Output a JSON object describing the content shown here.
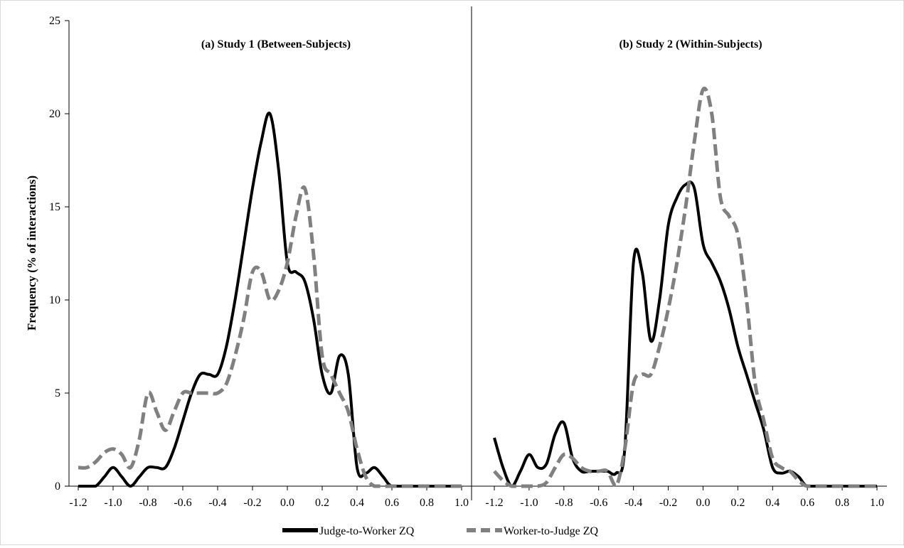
{
  "chart_data": {
    "type": "line",
    "ylabel": "Frequency (% of interactions)",
    "ylim": [
      0,
      25
    ],
    "yticks": [
      "0",
      "5",
      "10",
      "15",
      "20",
      "25"
    ],
    "grid": false,
    "legend_position": "bottom",
    "legend": [
      "Judge-to-Worker ZQ",
      "Worker-to-Judge ZQ"
    ],
    "colors": {
      "judge": "#000000",
      "worker": "#808080"
    },
    "panels": [
      {
        "title": "(a) Study 1 (Between-Subjects)",
        "xlim": [
          -1.2,
          1.0
        ],
        "xticks": [
          "-1.2",
          "-1.0",
          "-0.8",
          "-0.6",
          "-0.4",
          "-0.2",
          "0.0",
          "0.2",
          "0.4",
          "0.6",
          "0.8",
          "1.0"
        ],
        "series": [
          {
            "name": "Judge-to-Worker ZQ",
            "style": "solid",
            "points": [
              [
                -1.2,
                0
              ],
              [
                -1.15,
                0
              ],
              [
                -1.1,
                0
              ],
              [
                -1.05,
                0.5
              ],
              [
                -1.0,
                1.0
              ],
              [
                -0.95,
                0.5
              ],
              [
                -0.9,
                0
              ],
              [
                -0.85,
                0.5
              ],
              [
                -0.8,
                1.0
              ],
              [
                -0.75,
                1.0
              ],
              [
                -0.7,
                1.0
              ],
              [
                -0.65,
                2.0
              ],
              [
                -0.6,
                3.5
              ],
              [
                -0.55,
                5.0
              ],
              [
                -0.5,
                6.0
              ],
              [
                -0.45,
                6.0
              ],
              [
                -0.4,
                6.0
              ],
              [
                -0.35,
                7.5
              ],
              [
                -0.3,
                10.0
              ],
              [
                -0.25,
                13.0
              ],
              [
                -0.2,
                16.0
              ],
              [
                -0.15,
                18.5
              ],
              [
                -0.1,
                20.0
              ],
              [
                -0.05,
                17.0
              ],
              [
                0.0,
                12.0
              ],
              [
                0.05,
                11.5
              ],
              [
                0.1,
                11.0
              ],
              [
                0.15,
                9.0
              ],
              [
                0.2,
                6.0
              ],
              [
                0.25,
                5.0
              ],
              [
                0.3,
                7.0
              ],
              [
                0.35,
                6.0
              ],
              [
                0.4,
                1.0
              ],
              [
                0.45,
                0.7
              ],
              [
                0.5,
                1.0
              ],
              [
                0.55,
                0.5
              ],
              [
                0.6,
                0
              ],
              [
                0.7,
                0
              ],
              [
                0.8,
                0
              ],
              [
                0.9,
                0
              ],
              [
                1.0,
                0
              ]
            ]
          },
          {
            "name": "Worker-to-Judge ZQ",
            "style": "dashed",
            "points": [
              [
                -1.2,
                1.0
              ],
              [
                -1.15,
                1.0
              ],
              [
                -1.1,
                1.3
              ],
              [
                -1.05,
                1.8
              ],
              [
                -1.0,
                2.0
              ],
              [
                -0.95,
                1.7
              ],
              [
                -0.9,
                1.0
              ],
              [
                -0.85,
                2.5
              ],
              [
                -0.8,
                5.0
              ],
              [
                -0.75,
                4.0
              ],
              [
                -0.7,
                3.0
              ],
              [
                -0.65,
                4.0
              ],
              [
                -0.6,
                5.0
              ],
              [
                -0.55,
                5.0
              ],
              [
                -0.5,
                5.0
              ],
              [
                -0.45,
                5.0
              ],
              [
                -0.4,
                5.0
              ],
              [
                -0.35,
                5.5
              ],
              [
                -0.3,
                7.0
              ],
              [
                -0.25,
                9.0
              ],
              [
                -0.2,
                11.5
              ],
              [
                -0.15,
                11.5
              ],
              [
                -0.1,
                10.0
              ],
              [
                -0.05,
                10.5
              ],
              [
                0.0,
                12.0
              ],
              [
                0.05,
                14.5
              ],
              [
                0.1,
                16.0
              ],
              [
                0.15,
                12.5
              ],
              [
                0.2,
                7.0
              ],
              [
                0.25,
                6.0
              ],
              [
                0.3,
                5.0
              ],
              [
                0.35,
                4.0
              ],
              [
                0.4,
                2.0
              ],
              [
                0.45,
                0.5
              ],
              [
                0.5,
                0
              ],
              [
                0.55,
                0
              ],
              [
                0.6,
                0
              ],
              [
                0.7,
                0
              ],
              [
                0.8,
                0
              ],
              [
                0.9,
                0
              ],
              [
                1.0,
                0
              ]
            ]
          }
        ]
      },
      {
        "title": "(b) Study 2 (Within-Subjects)",
        "xlim": [
          -1.2,
          1.0
        ],
        "xticks": [
          "-1.2",
          "-1.0",
          "-0.8",
          "-0.6",
          "-0.4",
          "-0.2",
          "0.0",
          "0.2",
          "0.4",
          "0.6",
          "0.8",
          "1.0"
        ],
        "series": [
          {
            "name": "Judge-to-Worker ZQ",
            "style": "solid",
            "points": [
              [
                -1.2,
                2.6
              ],
              [
                -1.15,
                1.0
              ],
              [
                -1.1,
                0
              ],
              [
                -1.05,
                0.8
              ],
              [
                -1.0,
                1.7
              ],
              [
                -0.95,
                1.0
              ],
              [
                -0.9,
                1.2
              ],
              [
                -0.85,
                2.8
              ],
              [
                -0.8,
                3.4
              ],
              [
                -0.75,
                1.5
              ],
              [
                -0.7,
                0.8
              ],
              [
                -0.65,
                0.8
              ],
              [
                -0.6,
                0.8
              ],
              [
                -0.55,
                0.8
              ],
              [
                -0.5,
                0.7
              ],
              [
                -0.45,
                2.0
              ],
              [
                -0.4,
                12.0
              ],
              [
                -0.35,
                11.5
              ],
              [
                -0.3,
                7.8
              ],
              [
                -0.25,
                10.0
              ],
              [
                -0.2,
                14.0
              ],
              [
                -0.15,
                15.5
              ],
              [
                -0.1,
                16.2
              ],
              [
                -0.05,
                16.0
              ],
              [
                0.0,
                13.0
              ],
              [
                0.05,
                12.0
              ],
              [
                0.1,
                11.0
              ],
              [
                0.15,
                9.5
              ],
              [
                0.2,
                7.5
              ],
              [
                0.25,
                6.0
              ],
              [
                0.3,
                4.5
              ],
              [
                0.35,
                3.0
              ],
              [
                0.4,
                1.0
              ],
              [
                0.45,
                0.7
              ],
              [
                0.5,
                0.8
              ],
              [
                0.55,
                0.5
              ],
              [
                0.6,
                0
              ],
              [
                0.7,
                0
              ],
              [
                0.8,
                0
              ],
              [
                0.9,
                0
              ],
              [
                1.0,
                0
              ]
            ]
          },
          {
            "name": "Worker-to-Judge ZQ",
            "style": "dashed",
            "points": [
              [
                -1.2,
                0.8
              ],
              [
                -1.15,
                0.3
              ],
              [
                -1.1,
                0
              ],
              [
                -1.05,
                0
              ],
              [
                -1.0,
                0
              ],
              [
                -0.95,
                0
              ],
              [
                -0.9,
                0.2
              ],
              [
                -0.85,
                1.0
              ],
              [
                -0.8,
                1.7
              ],
              [
                -0.75,
                1.5
              ],
              [
                -0.7,
                1.0
              ],
              [
                -0.65,
                0.8
              ],
              [
                -0.6,
                0.8
              ],
              [
                -0.55,
                0.8
              ],
              [
                -0.5,
                0
              ],
              [
                -0.45,
                2.0
              ],
              [
                -0.4,
                5.5
              ],
              [
                -0.35,
                6.0
              ],
              [
                -0.3,
                6.0
              ],
              [
                -0.25,
                7.5
              ],
              [
                -0.2,
                9.5
              ],
              [
                -0.15,
                12.0
              ],
              [
                -0.1,
                15.0
              ],
              [
                -0.05,
                18.5
              ],
              [
                0.0,
                21.3
              ],
              [
                0.05,
                20.0
              ],
              [
                0.1,
                15.5
              ],
              [
                0.15,
                14.5
              ],
              [
                0.2,
                13.5
              ],
              [
                0.25,
                10.0
              ],
              [
                0.3,
                5.5
              ],
              [
                0.35,
                3.5
              ],
              [
                0.4,
                1.5
              ],
              [
                0.45,
                1.0
              ],
              [
                0.5,
                0.8
              ],
              [
                0.55,
                0.3
              ],
              [
                0.6,
                0
              ],
              [
                0.7,
                0
              ],
              [
                0.8,
                0
              ],
              [
                0.9,
                0
              ],
              [
                1.0,
                0
              ]
            ]
          }
        ]
      }
    ]
  }
}
